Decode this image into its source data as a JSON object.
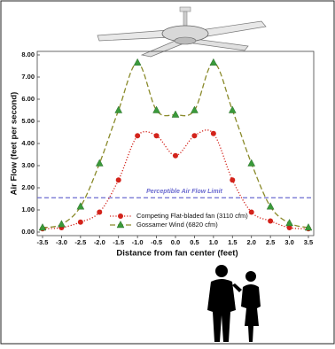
{
  "chart_data": {
    "type": "line",
    "x": [
      -3.5,
      -3.0,
      -2.5,
      -2.0,
      -1.5,
      -1.0,
      -0.5,
      0.0,
      0.5,
      1.0,
      1.5,
      2.0,
      2.5,
      3.0,
      3.5
    ],
    "series": [
      {
        "name": "Competing Flat-bladed fan (3110 cfm)",
        "color": "#d3231b",
        "marker": "circle",
        "line_style": "dotted",
        "values": [
          0.15,
          0.2,
          0.45,
          0.9,
          2.35,
          4.35,
          4.35,
          3.45,
          4.35,
          4.45,
          2.35,
          0.9,
          0.5,
          0.2,
          0.15
        ]
      },
      {
        "name": "Gossamer Wind (6820 cfm)",
        "color": "#3a9a3a",
        "line_color": "#8a8a2a",
        "marker": "triangle",
        "line_style": "dashed",
        "values": [
          0.2,
          0.35,
          1.15,
          3.1,
          5.5,
          7.65,
          5.5,
          5.3,
          5.5,
          7.65,
          5.5,
          3.1,
          1.15,
          0.4,
          0.2
        ]
      }
    ],
    "reference_line": {
      "label": "Perceptible Air Flow Limit",
      "value": 1.55,
      "color": "#6b6bd0"
    },
    "x_label": "Distance from fan center (feet)",
    "y_label": "Air Flow (feet per second)",
    "xlim": [
      -3.5,
      3.5
    ],
    "ylim": [
      0,
      8
    ],
    "xticks": [
      -3.5,
      {
        "value": -3,
        "label": "-3.0"
      },
      -2.5,
      {
        "value": -2,
        "label": "-2.0"
      },
      -1.5,
      {
        "value": -1,
        "label": "-1.0"
      },
      -0.5,
      {
        "value": 0,
        "label": "0.0"
      },
      0.5,
      {
        "value": 1,
        "label": "1.0"
      },
      1.5,
      {
        "value": 2,
        "label": "2.0"
      },
      2.5,
      {
        "value": 3,
        "label": "3.0"
      },
      3.5
    ],
    "yticks": [
      {
        "value": 0,
        "label": "0.00"
      },
      {
        "value": 1,
        "label": "1.00"
      },
      {
        "value": 2,
        "label": "2.00"
      },
      {
        "value": 3,
        "label": "3.00"
      },
      {
        "value": 4,
        "label": "4.00"
      },
      {
        "value": 5,
        "label": "5.00"
      },
      {
        "value": 6,
        "label": "6.00"
      },
      {
        "value": 7,
        "label": "7.00"
      },
      {
        "value": 8,
        "label": "8.00"
      }
    ],
    "legend": "lower-center"
  }
}
